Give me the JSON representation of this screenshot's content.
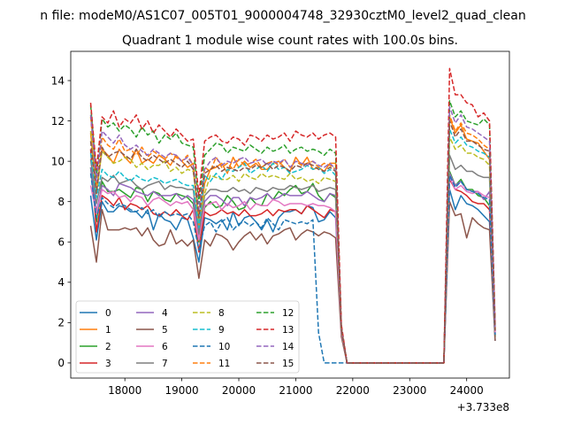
{
  "chart_data": {
    "type": "line",
    "suptitle": "n file: modeM0/AS1C07_005T01_9000004748_32930cztM0_level2_quad_clean",
    "title": "Quadrant 1 module wise count rates with 100.0s bins.",
    "xlabel": "",
    "ylabel": "",
    "offset_text": "+3.733e8",
    "xlim": [
      17050,
      24750
    ],
    "ylim": [
      -0.75,
      15.45
    ],
    "xticks": [
      18000,
      19000,
      20000,
      21000,
      22000,
      23000,
      24000
    ],
    "yticks": [
      0,
      2,
      4,
      6,
      8,
      10,
      12,
      14
    ],
    "grid": false,
    "legend": {
      "placement": "lower-left",
      "columns": 4
    },
    "x": {
      "start": 17400,
      "step": 100,
      "count": 72
    },
    "gap_range": [
      21800,
      23500
    ],
    "series": [
      {
        "name": "0",
        "color": "#1f77b4",
        "dash": "solid",
        "values": [
          8.3,
          6.1,
          8.0,
          7.5,
          7.5,
          7.8,
          7.7,
          7.5,
          7.5,
          7.2,
          7.6,
          6.6,
          7.4,
          7.1,
          7.0,
          6.6,
          7.2,
          7.1,
          6.2,
          5.0,
          7.2,
          7.1,
          6.9,
          7.1,
          6.6,
          7.5,
          6.8,
          7.2,
          7.3,
          7.0,
          6.6,
          7.1,
          6.5,
          7.2,
          7.5,
          7.5,
          7.6,
          7.4,
          7.8,
          7.7,
          7.0,
          7.1,
          7.5,
          7.2,
          1.5,
          0,
          0,
          0,
          0,
          0,
          0,
          0,
          0,
          0,
          0,
          0,
          0,
          0,
          0,
          0,
          0,
          0,
          0,
          8.6,
          7.6,
          8.3,
          7.9,
          7.8,
          7.6,
          7.3,
          7.0,
          1.1
        ]
      },
      {
        "name": "1",
        "color": "#ff7f0e",
        "dash": "solid",
        "values": [
          11.4,
          8.4,
          10.6,
          10.3,
          9.9,
          10.6,
          10.2,
          9.9,
          10.6,
          9.9,
          10.1,
          9.9,
          10.3,
          10.1,
          9.8,
          10.3,
          10.0,
          9.7,
          9.9,
          6.8,
          8.9,
          9.6,
          9.7,
          9.9,
          9.4,
          10.2,
          9.7,
          10.0,
          9.7,
          9.9,
          9.6,
          9.6,
          9.9,
          10.0,
          9.7,
          9.5,
          10.2,
          9.8,
          10.2,
          9.6,
          9.7,
          9.5,
          9.9,
          9.9,
          1.7,
          0,
          0,
          0,
          0,
          0,
          0,
          0,
          0,
          0,
          0,
          0,
          0,
          0,
          0,
          0,
          0,
          0,
          0,
          12.2,
          11.4,
          11.8,
          11.1,
          11.0,
          10.9,
          10.5,
          10.1,
          1.6
        ]
      },
      {
        "name": "2",
        "color": "#2ca02c",
        "dash": "solid",
        "values": [
          9.7,
          7.0,
          9.0,
          8.5,
          8.5,
          8.6,
          8.4,
          8.2,
          8.7,
          8.6,
          8.0,
          8.5,
          8.4,
          8.1,
          8.0,
          8.4,
          8.3,
          8.2,
          7.9,
          6.0,
          7.7,
          8.0,
          7.7,
          7.8,
          8.3,
          8.0,
          7.6,
          7.7,
          8.2,
          7.9,
          7.8,
          8.4,
          8.1,
          8.5,
          8.3,
          8.6,
          8.8,
          8.4,
          8.5,
          8.9,
          8.3,
          8.0,
          8.4,
          8.2,
          1.6,
          0,
          0,
          0,
          0,
          0,
          0,
          0,
          0,
          0,
          0,
          0,
          0,
          0,
          0,
          0,
          0,
          0,
          0,
          9.5,
          8.8,
          9.1,
          8.6,
          8.6,
          8.3,
          8.2,
          7.8,
          1.3
        ]
      },
      {
        "name": "3",
        "color": "#d62728",
        "dash": "solid",
        "values": [
          10.6,
          6.5,
          8.3,
          8.1,
          7.8,
          8.2,
          7.6,
          7.9,
          7.8,
          7.6,
          7.8,
          7.4,
          7.3,
          7.5,
          7.3,
          7.6,
          7.3,
          7.1,
          7.6,
          5.5,
          7.5,
          7.3,
          7.4,
          7.6,
          7.4,
          7.5,
          7.3,
          7.6,
          7.3,
          7.3,
          7.4,
          7.6,
          7.3,
          7.6,
          7.5,
          7.6,
          7.6,
          7.4,
          7.8,
          7.6,
          7.4,
          7.2,
          7.6,
          7.5,
          1.6,
          0,
          0,
          0,
          0,
          0,
          0,
          0,
          0,
          0,
          0,
          0,
          0,
          0,
          0,
          0,
          0,
          0,
          0,
          9.1,
          8.6,
          8.5,
          8.3,
          8.0,
          7.9,
          7.9,
          7.6,
          1.4
        ]
      },
      {
        "name": "4",
        "color": "#9467bd",
        "dash": "solid",
        "values": [
          9.7,
          7.5,
          8.8,
          8.6,
          8.3,
          8.9,
          8.8,
          8.7,
          8.5,
          8.4,
          8.3,
          8.5,
          8.3,
          8.3,
          8.3,
          8.4,
          8.1,
          8.3,
          8.1,
          6.3,
          8.0,
          8.3,
          8.3,
          8.1,
          7.8,
          8.2,
          8.2,
          7.8,
          8.2,
          8.1,
          8.2,
          8.4,
          8.1,
          8.2,
          8.4,
          8.3,
          8.3,
          8.3,
          8.5,
          8.3,
          8.1,
          8.0,
          8.4,
          8.3,
          1.7,
          0,
          0,
          0,
          0,
          0,
          0,
          0,
          0,
          0,
          0,
          0,
          0,
          0,
          0,
          0,
          0,
          0,
          0,
          9.4,
          8.8,
          9.0,
          8.6,
          8.5,
          8.5,
          8.1,
          8.5,
          1.5
        ]
      },
      {
        "name": "5",
        "color": "#8c564b",
        "dash": "solid",
        "values": [
          6.8,
          5.0,
          7.6,
          6.6,
          6.6,
          6.6,
          6.7,
          6.6,
          6.7,
          6.3,
          6.7,
          6.1,
          5.8,
          5.9,
          6.6,
          5.9,
          6.1,
          5.8,
          6.1,
          4.2,
          6.1,
          5.8,
          6.4,
          6.3,
          6.1,
          5.6,
          6.0,
          6.3,
          6.5,
          6.1,
          6.4,
          5.9,
          6.3,
          6.4,
          6.6,
          6.7,
          6.1,
          6.4,
          6.6,
          6.5,
          6.3,
          6.5,
          6.4,
          6.2,
          1.3,
          0,
          0,
          0,
          0,
          0,
          0,
          0,
          0,
          0,
          0,
          0,
          0,
          0,
          0,
          0,
          0,
          0,
          0,
          8.0,
          7.3,
          7.4,
          6.2,
          7.2,
          6.9,
          6.7,
          6.6,
          1.1
        ]
      },
      {
        "name": "6",
        "color": "#e377c2",
        "dash": "solid",
        "values": [
          8.8,
          7.4,
          8.6,
          8.4,
          8.5,
          8.2,
          8.3,
          8.0,
          8.3,
          8.2,
          7.8,
          8.1,
          8.2,
          8.0,
          7.8,
          8.0,
          7.9,
          8.0,
          7.6,
          6.1,
          7.8,
          7.9,
          8.0,
          7.6,
          7.9,
          7.7,
          7.8,
          8.0,
          7.6,
          7.9,
          7.8,
          7.8,
          8.1,
          8.0,
          7.8,
          7.9,
          7.9,
          7.9,
          7.8,
          7.9,
          7.8,
          7.8,
          7.7,
          7.5,
          1.5,
          0,
          0,
          0,
          0,
          0,
          0,
          0,
          0,
          0,
          0,
          0,
          0,
          0,
          0,
          0,
          0,
          0,
          0,
          9.2,
          8.6,
          8.8,
          8.5,
          8.4,
          8.5,
          8.3,
          8.2,
          1.5
        ]
      },
      {
        "name": "7",
        "color": "#7f7f7f",
        "dash": "solid",
        "values": [
          10.1,
          7.9,
          9.2,
          9.0,
          9.3,
          8.9,
          9.0,
          9.1,
          8.8,
          8.6,
          8.8,
          8.9,
          9.0,
          8.6,
          8.8,
          8.7,
          8.7,
          8.6,
          8.6,
          6.4,
          8.3,
          8.6,
          8.6,
          8.5,
          8.5,
          8.7,
          8.5,
          8.6,
          8.4,
          8.7,
          8.6,
          8.5,
          8.7,
          8.6,
          8.6,
          8.8,
          8.7,
          8.6,
          8.7,
          8.8,
          8.5,
          8.6,
          8.7,
          8.6,
          1.6,
          0,
          0,
          0,
          0,
          0,
          0,
          0,
          0,
          0,
          0,
          0,
          0,
          0,
          0,
          0,
          0,
          0,
          0,
          10.3,
          9.6,
          9.8,
          9.5,
          9.5,
          9.3,
          9.2,
          9.2,
          1.6
        ]
      },
      {
        "name": "8",
        "color": "#bcbd22",
        "dash": "dashed",
        "values": [
          11.5,
          8.6,
          10.5,
          10.2,
          9.9,
          10.0,
          10.2,
          10.1,
          9.7,
          9.9,
          9.6,
          9.8,
          9.8,
          10.0,
          9.5,
          9.7,
          9.4,
          9.6,
          9.5,
          7.1,
          8.4,
          9.3,
          9.2,
          9.1,
          9.1,
          9.3,
          9.0,
          9.4,
          9.2,
          9.1,
          9.4,
          9.2,
          9.3,
          9.2,
          9.1,
          9.4,
          9.1,
          9.2,
          9.0,
          9.1,
          8.9,
          9.2,
          9.1,
          9.0,
          1.7,
          0,
          0,
          0,
          0,
          0,
          0,
          0,
          0,
          0,
          0,
          0,
          0,
          0,
          0,
          0,
          0,
          0,
          0,
          11.2,
          10.6,
          10.8,
          10.4,
          10.4,
          10.2,
          10.1,
          9.8,
          1.7
        ]
      },
      {
        "name": "9",
        "color": "#17becf",
        "dash": "dashed",
        "values": [
          10.4,
          8.2,
          9.6,
          9.3,
          9.2,
          9.5,
          9.2,
          9.0,
          9.3,
          9.1,
          9.0,
          9.2,
          9.1,
          8.9,
          9.0,
          9.1,
          8.9,
          8.8,
          8.8,
          6.7,
          9.3,
          9.0,
          9.4,
          9.1,
          9.6,
          9.5,
          9.7,
          9.9,
          9.4,
          9.6,
          9.8,
          9.5,
          9.9,
          9.6,
          9.7,
          9.4,
          9.5,
          9.6,
          9.8,
          9.6,
          9.7,
          9.4,
          9.6,
          9.3,
          1.7,
          0,
          0,
          0,
          0,
          0,
          0,
          0,
          0,
          0,
          0,
          0,
          0,
          0,
          0,
          0,
          0,
          0,
          0,
          11.6,
          10.9,
          11.2,
          10.8,
          10.7,
          10.5,
          10.4,
          10.2,
          1.7
        ]
      },
      {
        "name": "10",
        "color": "#1f77b4",
        "dash": "dashed",
        "values": [
          9.4,
          7.2,
          8.2,
          7.9,
          7.7,
          7.9,
          7.8,
          7.6,
          7.5,
          7.7,
          7.4,
          7.6,
          7.2,
          7.5,
          7.3,
          7.4,
          7.3,
          7.4,
          7.0,
          5.6,
          6.8,
          7.0,
          6.5,
          7.0,
          7.2,
          6.6,
          6.9,
          7.0,
          6.8,
          7.0,
          6.7,
          7.2,
          6.9,
          6.6,
          7.1,
          7.0,
          6.9,
          7.0,
          6.9,
          7.1,
          1.5,
          0,
          0,
          0,
          0,
          0,
          0,
          0,
          0,
          0,
          0,
          0,
          0,
          0,
          0,
          0,
          0,
          0,
          0,
          0,
          0,
          0,
          0,
          9.3,
          8.7,
          9.0,
          8.6,
          8.5,
          8.4,
          8.2,
          8.1,
          1.4
        ]
      },
      {
        "name": "11",
        "color": "#ff7f0e",
        "dash": "dashed",
        "values": [
          12.2,
          8.8,
          11.2,
          10.8,
          10.6,
          11.1,
          10.5,
          10.6,
          10.3,
          10.7,
          10.2,
          10.5,
          10.3,
          10.1,
          10.4,
          10.2,
          10.0,
          10.3,
          9.8,
          7.4,
          9.7,
          9.5,
          10.2,
          9.7,
          9.9,
          9.6,
          10.1,
          9.8,
          9.9,
          10.1,
          9.7,
          9.9,
          10.0,
          9.8,
          10.1,
          9.7,
          10.0,
          9.8,
          9.9,
          10.0,
          9.7,
          9.9,
          9.8,
          9.6,
          1.7,
          0,
          0,
          0,
          0,
          0,
          0,
          0,
          0,
          0,
          0,
          0,
          0,
          0,
          0,
          0,
          0,
          0,
          0,
          12.3,
          11.5,
          11.9,
          11.4,
          11.3,
          11.1,
          10.8,
          10.6,
          1.7
        ]
      },
      {
        "name": "12",
        "color": "#2ca02c",
        "dash": "dashed",
        "values": [
          12.8,
          9.2,
          12.1,
          11.7,
          11.9,
          11.5,
          11.8,
          11.6,
          11.2,
          11.7,
          11.3,
          11.5,
          10.9,
          11.3,
          11.1,
          11.4,
          10.9,
          10.8,
          10.7,
          7.9,
          10.3,
          10.6,
          10.9,
          10.8,
          10.4,
          10.7,
          10.6,
          10.5,
          10.8,
          10.6,
          10.4,
          10.7,
          10.5,
          10.6,
          10.8,
          10.4,
          10.6,
          10.7,
          10.5,
          10.6,
          10.5,
          10.3,
          10.6,
          10.4,
          1.8,
          0,
          0,
          0,
          0,
          0,
          0,
          0,
          0,
          0,
          0,
          0,
          0,
          0,
          0,
          0,
          0,
          0,
          0,
          13.0,
          12.2,
          12.5,
          12.0,
          11.9,
          11.8,
          12.1,
          11.8,
          1.8
        ]
      },
      {
        "name": "13",
        "color": "#d62728",
        "dash": "dashed",
        "values": [
          12.9,
          9.6,
          12.2,
          11.9,
          12.5,
          11.7,
          12.1,
          11.9,
          12.3,
          11.6,
          12.0,
          11.4,
          11.8,
          11.5,
          11.2,
          11.6,
          11.3,
          11.0,
          11.1,
          8.3,
          11.0,
          11.2,
          11.3,
          11.0,
          10.9,
          11.2,
          11.1,
          10.8,
          11.3,
          11.2,
          11.0,
          11.3,
          11.1,
          11.2,
          11.4,
          11.0,
          11.5,
          11.3,
          11.2,
          11.4,
          11.1,
          11.3,
          11.4,
          11.2,
          1.9,
          0,
          0,
          0,
          0,
          0,
          0,
          0,
          0,
          0,
          0,
          0,
          0,
          0,
          0,
          0,
          0,
          0,
          0,
          14.6,
          13.3,
          13.3,
          12.9,
          12.8,
          12.2,
          12.4,
          12.0,
          1.9
        ]
      },
      {
        "name": "14",
        "color": "#9467bd",
        "dash": "dashed",
        "values": [
          12.3,
          9.0,
          11.5,
          11.2,
          10.9,
          11.3,
          10.8,
          10.6,
          10.8,
          10.5,
          10.3,
          10.6,
          10.4,
          10.2,
          10.4,
          10.3,
          10.0,
          10.2,
          9.8,
          7.6,
          9.6,
          10.0,
          10.2,
          9.8,
          10.0,
          9.9,
          10.1,
          10.2,
          9.9,
          10.0,
          10.1,
          9.8,
          10.0,
          9.9,
          10.1,
          9.7,
          10.0,
          9.9,
          9.8,
          10.0,
          9.8,
          9.7,
          9.9,
          9.6,
          1.7,
          0,
          0,
          0,
          0,
          0,
          0,
          0,
          0,
          0,
          0,
          0,
          0,
          0,
          0,
          0,
          0,
          0,
          0,
          12.7,
          11.9,
          12.3,
          11.7,
          11.6,
          11.4,
          11.2,
          11.0,
          1.7
        ]
      },
      {
        "name": "15",
        "color": "#8c564b",
        "dash": "dashed",
        "values": [
          11.0,
          8.4,
          10.7,
          10.2,
          10.4,
          10.5,
          10.3,
          10.1,
          10.6,
          10.2,
          10.0,
          10.3,
          10.1,
          9.9,
          10.1,
          9.9,
          9.7,
          10.0,
          9.6,
          7.2,
          9.4,
          9.6,
          9.8,
          9.5,
          9.7,
          9.6,
          9.5,
          9.7,
          9.6,
          9.8,
          9.7,
          9.9,
          9.6,
          9.8,
          9.7,
          9.5,
          9.8,
          9.7,
          9.9,
          9.8,
          9.6,
          9.5,
          9.7,
          9.5,
          1.7,
          0,
          0,
          0,
          0,
          0,
          0,
          0,
          0,
          0,
          0,
          0,
          0,
          0,
          0,
          0,
          0,
          0,
          0,
          12.0,
          11.2,
          11.6,
          11.0,
          11.0,
          10.8,
          10.6,
          10.5,
          1.6
        ]
      }
    ]
  }
}
